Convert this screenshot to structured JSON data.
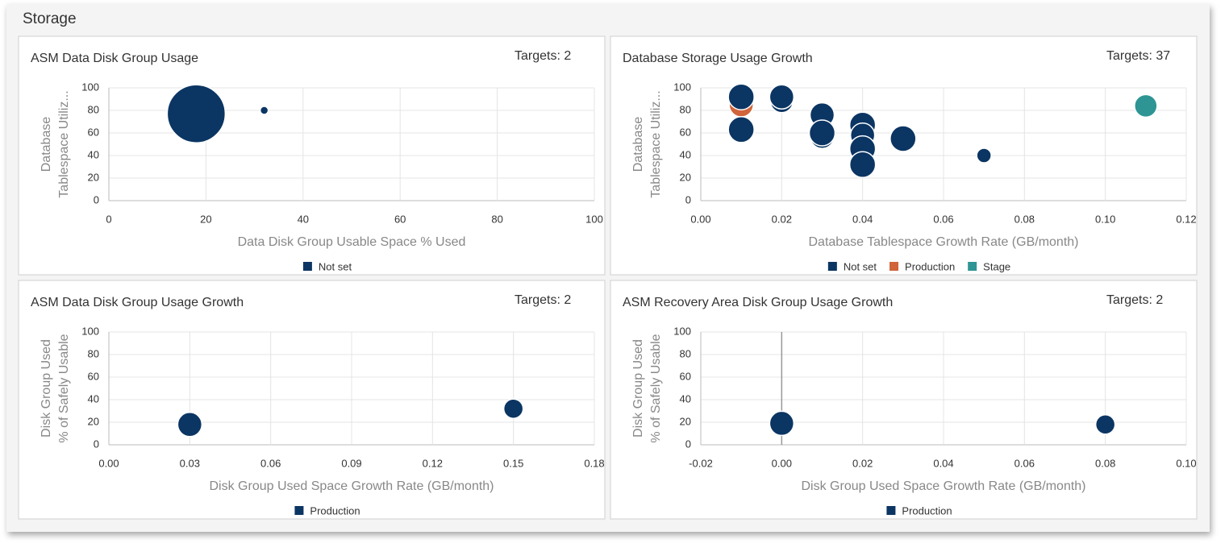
{
  "header": {
    "title": "Storage"
  },
  "chart_data": [
    {
      "type": "bubble",
      "title": "ASM Data Disk Group Usage",
      "targets": "Targets: 2",
      "xlabel": "Data Disk Group Usable Space % Used",
      "ylabel": [
        "Database",
        "Tablespace Utiliz..."
      ],
      "xlim": [
        0,
        100
      ],
      "xticks": [
        0,
        20,
        40,
        60,
        80,
        100
      ],
      "ylim": [
        0,
        100
      ],
      "yticks": [
        0,
        20,
        40,
        60,
        80,
        100
      ],
      "grid": true,
      "series": [
        {
          "name": "Not set",
          "color": "#0b3563",
          "x": [
            18,
            32
          ],
          "values": [
            77,
            80
          ],
          "sizes": [
            36,
            5
          ]
        }
      ]
    },
    {
      "type": "bubble",
      "title": "Database Storage Usage Growth",
      "targets": "Targets: 37",
      "xlabel": "Database Tablespace Growth Rate (GB/month)",
      "ylabel": [
        "Database",
        "Tablespace Utiliz..."
      ],
      "xlim": [
        0,
        0.12
      ],
      "xticks": [
        {
          "value": 0,
          "label": "0.00"
        },
        0.02,
        0.04,
        0.06,
        0.08,
        {
          "value": 0.1,
          "label": "0.10"
        },
        0.12
      ],
      "ylim": [
        0,
        100
      ],
      "yticks": [
        0,
        20,
        40,
        60,
        80,
        100
      ],
      "grid": true,
      "series": [
        {
          "name": "Not set",
          "color": "#0b3563",
          "x": [
            0.01,
            0.01,
            0.02,
            0.02,
            0.03,
            0.03,
            0.03,
            0.04,
            0.04,
            0.04,
            0.04,
            0.05,
            0.07
          ],
          "values": [
            92,
            63,
            88,
            92,
            76,
            57,
            60,
            67,
            58,
            46,
            32,
            55,
            40
          ],
          "sizes": [
            16,
            16,
            14,
            15,
            15,
            15,
            16,
            16,
            15,
            16,
            16,
            16,
            9
          ]
        },
        {
          "name": "Production",
          "color": "#d0643a",
          "x": [
            0.01
          ],
          "values": [
            85
          ],
          "sizes": [
            15
          ]
        },
        {
          "name": "Stage",
          "color": "#2e9494",
          "x": [
            0.11
          ],
          "values": [
            84
          ],
          "sizes": [
            14
          ]
        }
      ]
    },
    {
      "type": "bubble",
      "title": "ASM Data Disk Group Usage Growth",
      "targets": "Targets: 2",
      "xlabel": "Disk Group Used Space Growth Rate (GB/month)",
      "ylabel": [
        "Disk Group Used",
        "% of Safely Usable"
      ],
      "xlim": [
        0,
        0.18
      ],
      "xticks": [
        {
          "value": 0,
          "label": "0.00"
        },
        0.03,
        0.06,
        0.09,
        0.12,
        0.15,
        0.18
      ],
      "ylim": [
        0,
        100
      ],
      "yticks": [
        0,
        20,
        40,
        60,
        80,
        100
      ],
      "grid": true,
      "series": [
        {
          "name": "Production",
          "color": "#0b3563",
          "x": [
            0.03,
            0.15
          ],
          "values": [
            18,
            32
          ],
          "sizes": [
            15,
            12
          ]
        }
      ]
    },
    {
      "type": "bubble",
      "title": "ASM Recovery Area Disk Group Usage Growth",
      "targets": "Targets: 2",
      "xlabel": "Disk Group Used Space Growth Rate (GB/month)",
      "ylabel": [
        "Disk Group Used",
        "% of Safely Usable"
      ],
      "xlim": [
        -0.02,
        0.1
      ],
      "xticks": [
        -0.02,
        {
          "value": 0,
          "label": "0.00"
        },
        0.02,
        0.04,
        0.06,
        0.08,
        {
          "value": 0.1,
          "label": "0.10"
        }
      ],
      "ylim": [
        0,
        100
      ],
      "yticks": [
        0,
        20,
        40,
        60,
        80,
        100
      ],
      "grid": true,
      "series": [
        {
          "name": "Production",
          "color": "#0b3563",
          "x": [
            0,
            0.08
          ],
          "values": [
            19,
            18
          ],
          "sizes": [
            15,
            12
          ]
        }
      ]
    }
  ]
}
